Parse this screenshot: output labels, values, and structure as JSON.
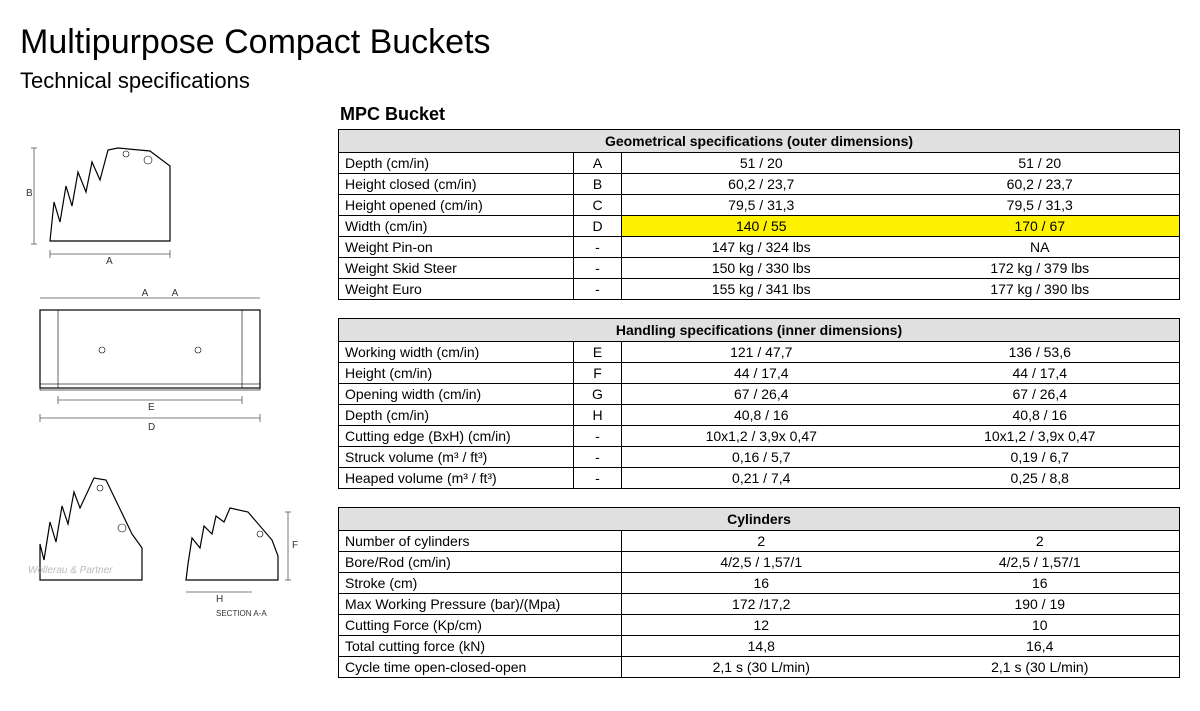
{
  "title": "Multipurpose Compact Buckets",
  "subtitle": "Technical specifications",
  "product_heading": "MPC Bucket",
  "colors": {
    "table_header_bg": "#e0e0e0",
    "highlight_bg": "#fff200",
    "border": "#000000",
    "text": "#000000",
    "bg": "#ffffff"
  },
  "tables": {
    "geometrical": {
      "header": "Geometrical specifications (outer dimensions)",
      "rows": [
        {
          "label": "Depth (cm/in)",
          "key": "A",
          "v1": "51 / 20",
          "v2": "51 / 20",
          "hl": false
        },
        {
          "label": "Height closed (cm/in)",
          "key": "B",
          "v1": "60,2 / 23,7",
          "v2": "60,2 / 23,7",
          "hl": false
        },
        {
          "label": "Height opened (cm/in)",
          "key": "C",
          "v1": "79,5 / 31,3",
          "v2": "79,5 / 31,3",
          "hl": false
        },
        {
          "label": "Width (cm/in)",
          "key": "D",
          "v1": "140 / 55",
          "v2": "170 / 67",
          "hl": true
        },
        {
          "label": "Weight Pin-on",
          "key": "-",
          "v1": "147 kg / 324 lbs",
          "v2": "NA",
          "hl": false
        },
        {
          "label": "Weight Skid Steer",
          "key": "-",
          "v1": "150 kg / 330 lbs",
          "v2": "172 kg / 379 lbs",
          "hl": false
        },
        {
          "label": "Weight Euro",
          "key": "-",
          "v1": "155 kg / 341 lbs",
          "v2": "177 kg / 390 lbs",
          "hl": false
        }
      ]
    },
    "handling": {
      "header": "Handling specifications (inner dimensions)",
      "rows": [
        {
          "label": "Working width (cm/in)",
          "key": "E",
          "v1": "121 / 47,7",
          "v2": "136 / 53,6"
        },
        {
          "label": "Height (cm/in)",
          "key": "F",
          "v1": "44 / 17,4",
          "v2": "44 / 17,4"
        },
        {
          "label": "Opening width (cm/in)",
          "key": "G",
          "v1": "67 / 26,4",
          "v2": "67 / 26,4"
        },
        {
          "label": "Depth (cm/in)",
          "key": "H",
          "v1": "40,8 / 16",
          "v2": "40,8 / 16"
        },
        {
          "label": "Cutting edge (BxH) (cm/in)",
          "key": "-",
          "v1": "10x1,2 / 3,9x 0,47",
          "v2": "10x1,2 / 3,9x 0,47"
        },
        {
          "label": "Struck volume (m³ / ft³)",
          "key": "-",
          "v1": "0,16 / 5,7",
          "v2": "0,19 / 6,7"
        },
        {
          "label": "Heaped volume (m³ / ft³)",
          "key": "-",
          "v1": "0,21 / 7,4",
          "v2": "0,25 / 8,8"
        }
      ]
    },
    "cylinders": {
      "header": "Cylinders",
      "rows": [
        {
          "label": "Number of cylinders",
          "v1": "2",
          "v2": "2"
        },
        {
          "label": "Bore/Rod (cm/in)",
          "v1": "4/2,5 / 1,57/1",
          "v2": "4/2,5 / 1,57/1"
        },
        {
          "label": "Stroke (cm)",
          "v1": "16",
          "v2": "16"
        },
        {
          "label": "Max Working Pressure (bar)/(Mpa)",
          "v1": "172 /17,2",
          "v2": "190 / 19"
        },
        {
          "label": "Cutting Force (Kp/cm)",
          "v1": "12",
          "v2": "10"
        },
        {
          "label": "Total cutting force (kN)",
          "v1": "14,8",
          "v2": "16,4"
        },
        {
          "label": "Cycle time open-closed-open",
          "v1": "2,1 s (30 L/min)",
          "v2": "2,1 s (30 L/min)"
        }
      ]
    }
  },
  "diagrams": {
    "side": {
      "dim_a": "A",
      "dim_b": "B"
    },
    "front": {
      "dim_d": "D",
      "dim_e": "E"
    },
    "section": {
      "dim_h": "H",
      "dim_f": "F",
      "caption": "SECTION A-A"
    }
  },
  "watermark": "Wollerau & Partner"
}
